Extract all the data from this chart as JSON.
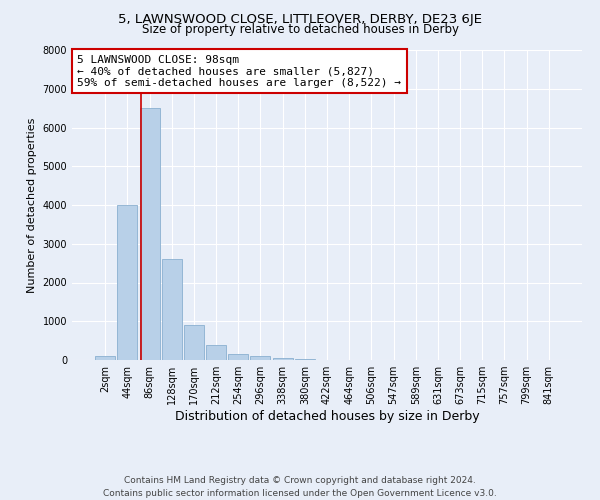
{
  "title1": "5, LAWNSWOOD CLOSE, LITTLEOVER, DERBY, DE23 6JE",
  "title2": "Size of property relative to detached houses in Derby",
  "xlabel": "Distribution of detached houses by size in Derby",
  "ylabel": "Number of detached properties",
  "footer": "Contains HM Land Registry data © Crown copyright and database right 2024.\nContains public sector information licensed under the Open Government Licence v3.0.",
  "annotation_title": "5 LAWNSWOOD CLOSE: 98sqm",
  "annotation_line1": "← 40% of detached houses are smaller (5,827)",
  "annotation_line2": "59% of semi-detached houses are larger (8,522) →",
  "categories": [
    "2sqm",
    "44sqm",
    "86sqm",
    "128sqm",
    "170sqm",
    "212sqm",
    "254sqm",
    "296sqm",
    "338sqm",
    "380sqm",
    "422sqm",
    "464sqm",
    "506sqm",
    "547sqm",
    "589sqm",
    "631sqm",
    "673sqm",
    "715sqm",
    "757sqm",
    "799sqm",
    "841sqm"
  ],
  "values": [
    100,
    4000,
    6500,
    2600,
    900,
    400,
    150,
    100,
    60,
    30,
    10,
    5,
    2,
    1,
    1,
    0,
    0,
    0,
    0,
    0,
    0
  ],
  "bar_color": "#b8d0e8",
  "bar_edge_color": "#8ab0d0",
  "vline_color": "#cc0000",
  "vline_x": 1.62,
  "annotation_box_facecolor": "#ffffff",
  "annotation_box_edgecolor": "#cc0000",
  "ylim": [
    0,
    8000
  ],
  "yticks": [
    0,
    1000,
    2000,
    3000,
    4000,
    5000,
    6000,
    7000,
    8000
  ],
  "background_color": "#e8eef8",
  "grid_color": "#ffffff",
  "title1_fontsize": 9.5,
  "title2_fontsize": 8.5,
  "xlabel_fontsize": 9,
  "ylabel_fontsize": 8,
  "tick_fontsize": 7,
  "footer_fontsize": 6.5,
  "annotation_fontsize": 8
}
